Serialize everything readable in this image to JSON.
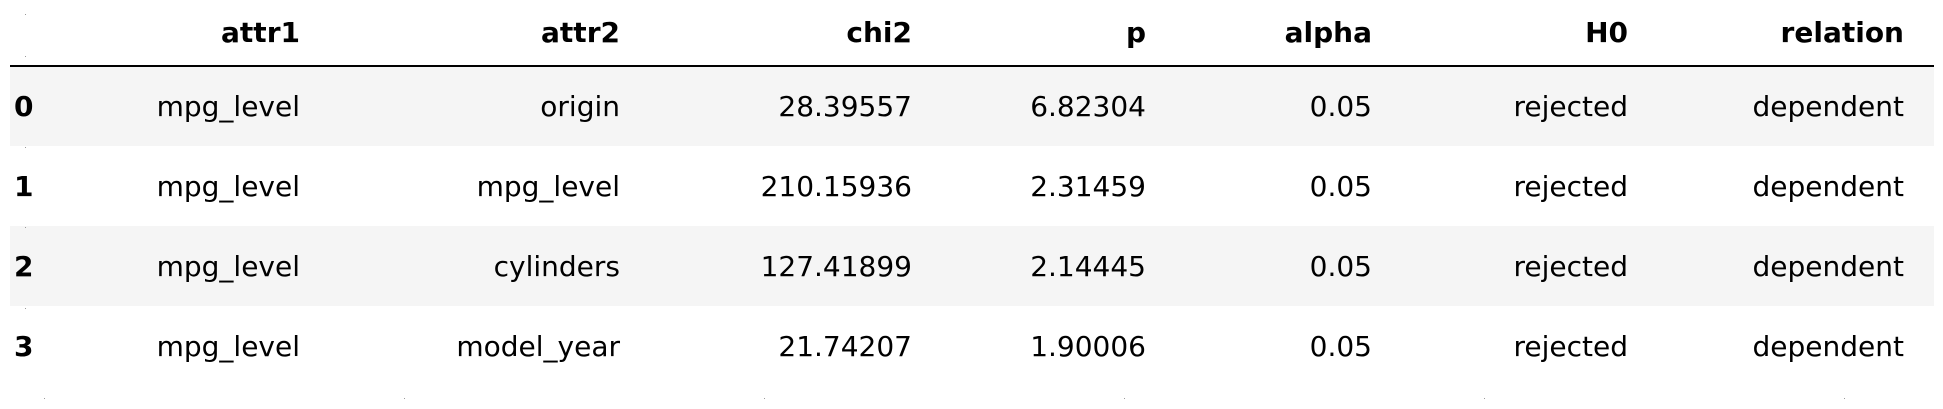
{
  "table": {
    "columns": [
      "attr1",
      "attr2",
      "chi2",
      "p",
      "alpha",
      "H0",
      "relation"
    ],
    "rows": [
      {
        "index": "0",
        "cells": [
          "mpg_level",
          "origin",
          "28.39557",
          "6.82304",
          "0.05",
          "rejected",
          "dependent"
        ]
      },
      {
        "index": "1",
        "cells": [
          "mpg_level",
          "mpg_level",
          "210.15936",
          "2.31459",
          "0.05",
          "rejected",
          "dependent"
        ]
      },
      {
        "index": "2",
        "cells": [
          "mpg_level",
          "cylinders",
          "127.41899",
          "2.14445",
          "0.05",
          "rejected",
          "dependent"
        ]
      },
      {
        "index": "3",
        "cells": [
          "mpg_level",
          "model_year",
          "21.74207",
          "1.90006",
          "0.05",
          "rejected",
          "dependent"
        ]
      }
    ]
  },
  "colors": {
    "striped_row_bg": "#f5f5f5",
    "header_rule": "#000000",
    "text": "#000000"
  }
}
